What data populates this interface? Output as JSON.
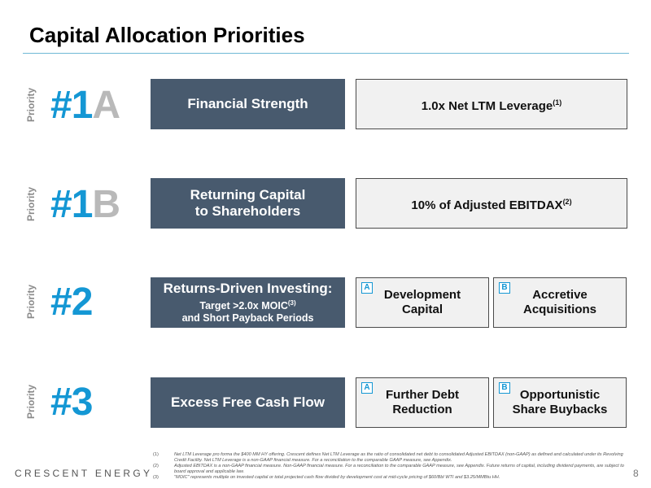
{
  "title": "Capital Allocation Priorities",
  "priority_label": "Priority",
  "rows": [
    {
      "rank_number": "#1",
      "rank_letter": "A",
      "main": "Financial Strength",
      "metric": "1.0x Net LTM Leverage",
      "metric_sup": "(1)"
    },
    {
      "rank_number": "#1",
      "rank_letter": "B",
      "main_line1": "Returning Capital",
      "main_line2": "to Shareholders",
      "metric": "10% of Adjusted EBITDAX",
      "metric_sup": "(2)"
    },
    {
      "rank_number": "#2",
      "main": "Returns-Driven Investing:",
      "sub_line1": "Target >2.0x MOIC",
      "sub_line1_sup": "(3)",
      "sub_line2": "and Short Payback Periods",
      "option_a": {
        "tag": "A",
        "line1": "Development",
        "line2": "Capital"
      },
      "option_b": {
        "tag": "B",
        "line1": "Accretive",
        "line2": "Acquisitions"
      }
    },
    {
      "rank_number": "#3",
      "main": "Excess Free Cash Flow",
      "option_a": {
        "tag": "A",
        "line1": "Further Debt",
        "line2": "Reduction"
      },
      "option_b": {
        "tag": "B",
        "line1": "Opportunistic",
        "line2": "Share Buybacks"
      }
    }
  ],
  "footnotes": [
    {
      "num": "(1)",
      "text": "Net LTM Leverage pro forma the $400 MM HY offering. Crescent defines Net LTM Leverage as the ratio of consolidated net debt to consolidated Adjusted EBITDAX (non-GAAP) as defined and calculated under its Revolving Credit Facility. Net LTM Leverage is a non-GAAP financial measure. For a reconciliation to the comparable GAAP measure, see Appendix."
    },
    {
      "num": "(2)",
      "text": "Adjusted EBITDAX is a non-GAAP financial measure. Non-GAAP financial measure. For a reconciliation to the comparable GAAP measure, see Appendix. Future returns of capital, including dividend payments, are subject to board approval and applicable law."
    },
    {
      "num": "(3)",
      "text": "\"MOIC\" represents multiple on invested capital or total projected cash flow divided by development cost at mid-cycle pricing of $60/Bbl WTI and $3.25/MMBtu HH."
    }
  ],
  "brand": "CRESCENT ENERGY",
  "page_number": "8",
  "colors": {
    "accent_blue": "#1497d4",
    "dark_box": "#485a6e",
    "light_box": "#f1f1f1",
    "rank_letter_gray": "#b9b9b9",
    "title_rule": "#6fb9d6"
  }
}
